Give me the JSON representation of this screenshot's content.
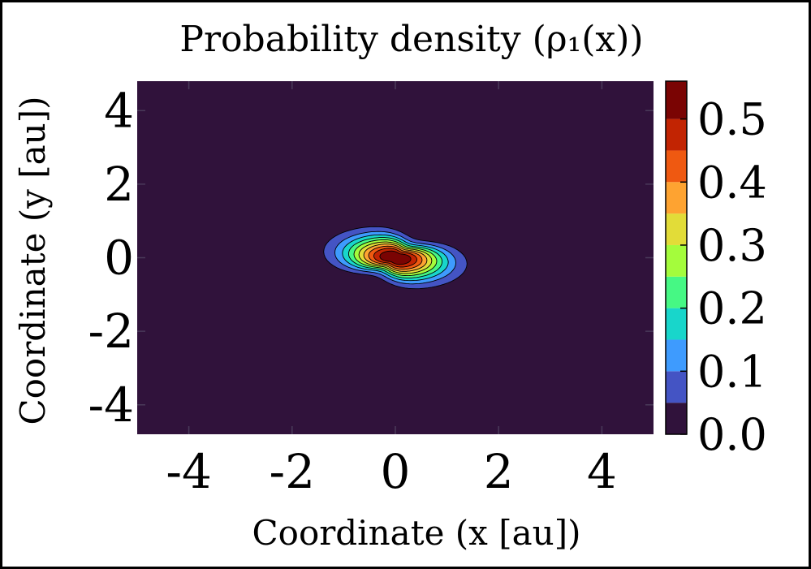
{
  "chart_data": {
    "type": "heatmap",
    "subtype": "filled-contour",
    "title": "Probability density (ρ₁(x))",
    "xlabel": "Coordinate (x [au])",
    "ylabel": "Coordinate (y [au])",
    "xlim": [
      -5,
      5
    ],
    "ylim": [
      -4.8,
      4.8
    ],
    "xticks": [
      -4,
      -2,
      0,
      2,
      4
    ],
    "yticks": [
      -4,
      -2,
      0,
      2,
      4
    ],
    "xtick_labels": [
      "-4",
      "-2",
      "0",
      "2",
      "4"
    ],
    "ytick_labels": [
      "-4",
      "-2",
      "0",
      "2",
      "4"
    ],
    "peak": {
      "x": 0.0,
      "y": 0.0,
      "value": 0.56
    },
    "colorbar": {
      "min": 0.0,
      "max": 0.56,
      "levels": [
        0.0,
        0.05,
        0.1,
        0.15,
        0.2,
        0.25,
        0.3,
        0.35,
        0.4,
        0.45,
        0.5,
        0.56
      ],
      "colors": [
        "#30123b",
        "#4454c4",
        "#3e9bfe",
        "#18d6cb",
        "#46f884",
        "#a4fc3c",
        "#e2dc38",
        "#fea331",
        "#ef5911",
        "#c22402",
        "#7a0403"
      ],
      "ticks": [
        0.0,
        0.1,
        0.2,
        0.3,
        0.4,
        0.5
      ],
      "tick_labels": [
        "0.0",
        "0.1",
        "0.2",
        "0.3",
        "0.4",
        "0.5"
      ]
    },
    "contour_lines": "on",
    "grid": "off",
    "legend": "none"
  }
}
